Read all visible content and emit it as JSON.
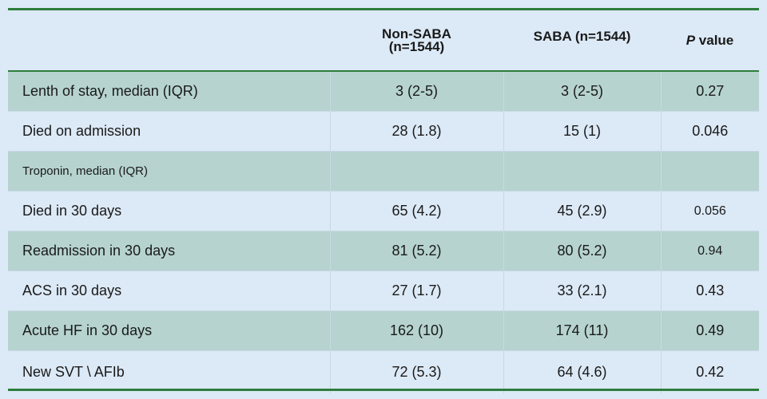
{
  "table": {
    "headers": {
      "col1": "",
      "col2_line1": "Non-SABA",
      "col2_line2": "(n=1544)",
      "col3": "SABA (n=1544)",
      "col4_italic": "P",
      "col4_rest": " value"
    },
    "rows": [
      {
        "label": "Lenth of stay, median (IQR)",
        "non_saba": "3 (2-5)",
        "saba": "3 (2-5)",
        "p": "0.27"
      },
      {
        "label": "Died on admission",
        "non_saba": "28 (1.8)",
        "saba": "15 (1)",
        "p": "0.046"
      },
      {
        "label": "Troponin,  median (IQR)",
        "non_saba": "",
        "saba": "",
        "p": ""
      },
      {
        "label": "Died in 30 days",
        "non_saba": "65 (4.2)",
        "saba": "45 (2.9)",
        "p": "0.056"
      },
      {
        "label": "Readmission in 30 days",
        "non_saba": "81 (5.2)",
        "saba": "80 (5.2)",
        "p": "0.94"
      },
      {
        "label": "ACS in 30 days",
        "non_saba": "27 (1.7)",
        "saba": "33 (2.1)",
        "p": "0.43"
      },
      {
        "label": "Acute HF in 30 days",
        "non_saba": "162 (10)",
        "saba": "174 (11)",
        "p": "0.49"
      },
      {
        "label": "New SVT \\ AFIb",
        "non_saba": "72 (5.3)",
        "saba": "64 (4.6)",
        "p": "0.42"
      }
    ]
  },
  "colors": {
    "background": "#dce9f6",
    "shaded_row": "#b6d3cf",
    "rule": "#2e7d3b"
  }
}
